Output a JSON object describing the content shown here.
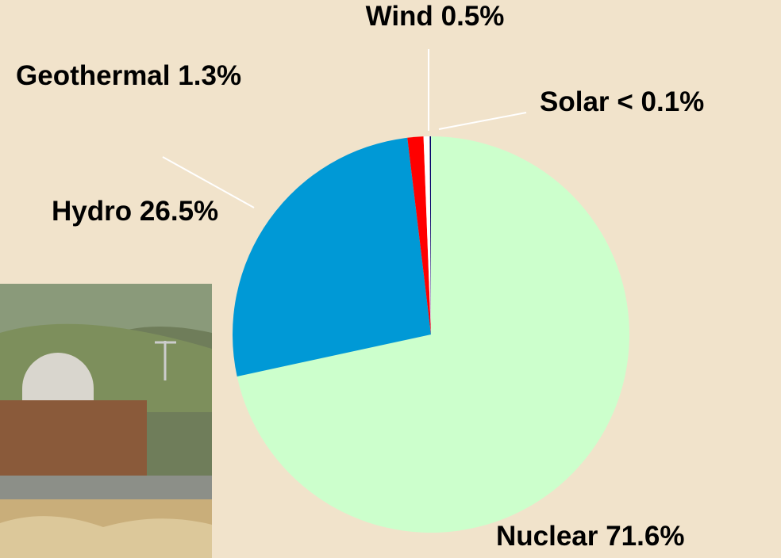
{
  "chart_data": {
    "type": "pie",
    "categories": [
      "Nuclear",
      "Hydro",
      "Geothermal",
      "Wind",
      "Solar"
    ],
    "values": [
      71.6,
      26.5,
      1.3,
      0.5,
      0.1
    ],
    "value_labels": [
      "71.6%",
      "26.5%",
      "1.3%",
      "0.5%",
      "< 0.1%"
    ],
    "colors": [
      "#ccffcc",
      "#0099d6",
      "#ff0000",
      "#ffffff",
      "#000066"
    ]
  }
}
